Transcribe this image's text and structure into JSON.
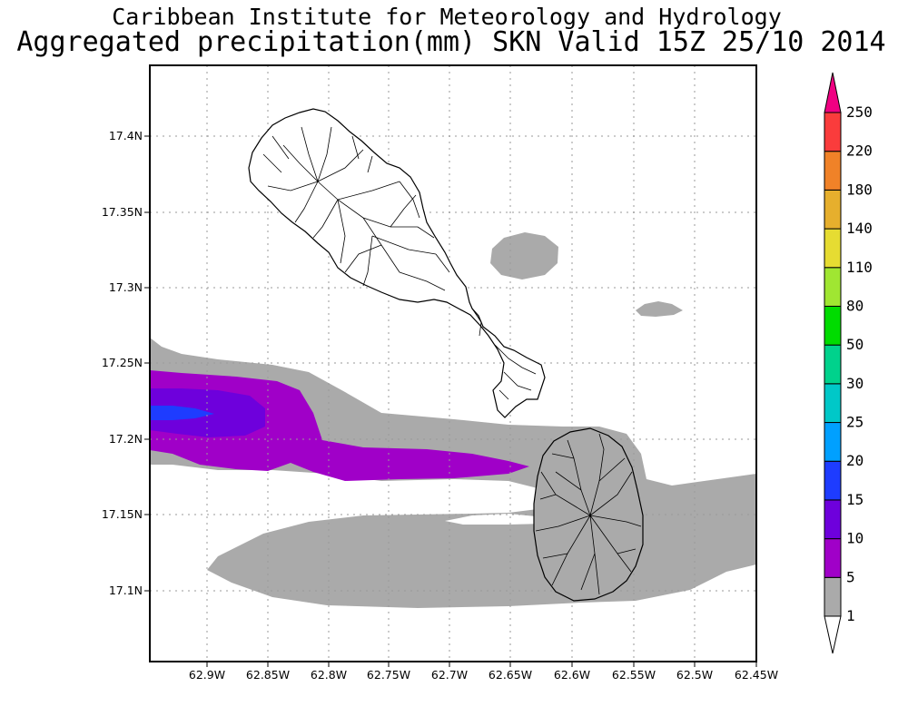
{
  "title_line1": "Caribbean Institute for Meteorology and Hydrology",
  "title_line2": "Aggregated precipitation(mm) SKN Valid 15Z 25/10 2014",
  "axes": {
    "x_ticks": [
      "62.9W",
      "62.85W",
      "62.8W",
      "62.75W",
      "62.7W",
      "62.65W",
      "62.6W",
      "62.55W",
      "62.5W",
      "62.45W"
    ],
    "y_ticks": [
      "17.4N",
      "17.35N",
      "17.3N",
      "17.25N",
      "17.2N",
      "17.15N",
      "17.1N"
    ]
  },
  "colorbar": {
    "levels": [
      "1",
      "5",
      "10",
      "15",
      "20",
      "25",
      "30",
      "50",
      "80",
      "110",
      "140",
      "180",
      "220",
      "250"
    ],
    "colors": [
      "#aaaaaa",
      "#a000c8",
      "#6e00dc",
      "#1e3cff",
      "#00a0ff",
      "#00c8c8",
      "#00d28c",
      "#00dc00",
      "#a0e632",
      "#e6dc32",
      "#e6af2d",
      "#f08228",
      "#fa3c3c",
      "#f00082"
    ]
  },
  "map_colors": {
    "gray": "#aaaaaa",
    "magenta": "#a000c8",
    "purple": "#6e00dc",
    "blue": "#1e3cff",
    "land": "#ffffff",
    "nevis_shade": "#aaaaaa"
  }
}
